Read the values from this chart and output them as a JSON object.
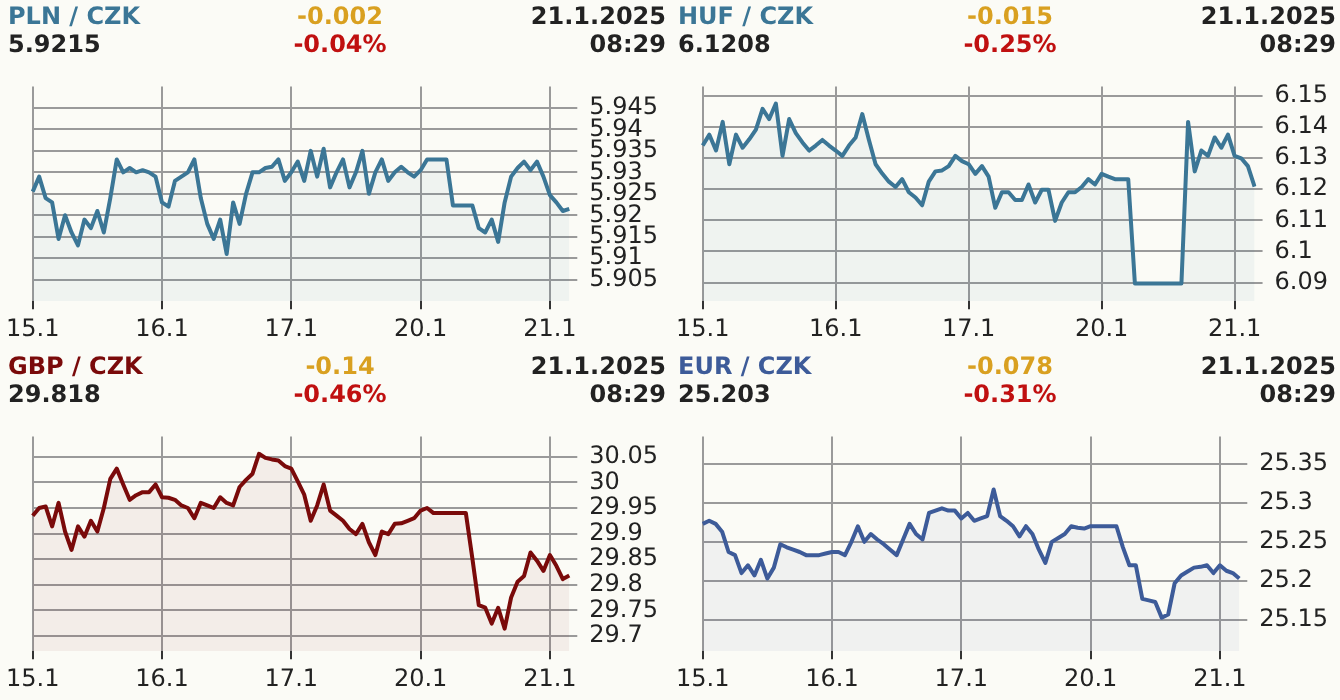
{
  "chart_data": [
    {
      "type": "area",
      "title": "PLN / CZK",
      "subtitle": "5.9215",
      "annotations": [
        "-0.002",
        "-0.04%",
        "21.1.2025",
        "08:29"
      ],
      "grid": true,
      "legend": false,
      "ylim": [
        5.9,
        5.95
      ],
      "yticks": [
        5.905,
        5.91,
        5.915,
        5.92,
        5.925,
        5.93,
        5.935,
        5.94,
        5.945
      ],
      "categories": [
        "15.1",
        null,
        null,
        null,
        null,
        null,
        null,
        null,
        null,
        null,
        null,
        null,
        null,
        null,
        null,
        null,
        null,
        null,
        null,
        null,
        "16.1",
        null,
        null,
        null,
        null,
        null,
        null,
        null,
        null,
        null,
        null,
        null,
        null,
        null,
        null,
        null,
        null,
        null,
        null,
        null,
        "17.1",
        null,
        null,
        null,
        null,
        null,
        null,
        null,
        null,
        null,
        null,
        null,
        null,
        null,
        null,
        null,
        null,
        null,
        null,
        null,
        "20.1",
        null,
        null,
        null,
        null,
        null,
        null,
        null,
        null,
        null,
        null,
        null,
        null,
        null,
        null,
        null,
        null,
        null,
        null,
        null,
        "21.1",
        null,
        null,
        null
      ],
      "series": [
        {
          "color": "#3b7696",
          "values": [
            5.9255,
            5.929,
            5.924,
            5.923,
            5.9145,
            5.92,
            5.916,
            5.913,
            5.919,
            5.917,
            5.921,
            5.916,
            5.924,
            5.933,
            5.93,
            5.931,
            5.93,
            5.9305,
            5.93,
            5.929,
            5.923,
            5.922,
            5.928,
            5.929,
            5.93,
            5.933,
            5.924,
            5.918,
            5.9145,
            5.919,
            5.911,
            5.923,
            5.918,
            5.925,
            5.93,
            5.93,
            5.931,
            5.9313,
            5.933,
            5.928,
            5.93,
            5.9325,
            5.928,
            5.935,
            5.929,
            5.9355,
            5.9265,
            5.93,
            5.933,
            5.9265,
            5.93,
            5.935,
            5.925,
            5.93,
            5.933,
            5.928,
            5.93,
            5.9313,
            5.93,
            5.929,
            5.9305,
            5.933,
            5.933,
            5.933,
            5.933,
            5.9223,
            5.9223,
            5.9223,
            5.9223,
            5.917,
            5.916,
            5.919,
            5.9138,
            5.923,
            5.929,
            5.931,
            5.9325,
            5.9305,
            5.9325,
            5.929,
            5.9247,
            5.923,
            5.921,
            5.9215
          ]
        }
      ]
    },
    {
      "type": "area",
      "title": "HUF / CZK",
      "subtitle": "6.1208",
      "annotations": [
        "-0.015",
        "-0.25%",
        "21.1.2025",
        "08:29"
      ],
      "grid": true,
      "legend": false,
      "ylim": [
        6.084,
        6.153
      ],
      "yticks": [
        6.09,
        6.1,
        6.11,
        6.12,
        6.13,
        6.14,
        6.15
      ],
      "categories": [
        "15.1",
        null,
        null,
        null,
        null,
        null,
        null,
        null,
        null,
        null,
        null,
        null,
        null,
        null,
        null,
        null,
        null,
        null,
        null,
        null,
        "16.1",
        null,
        null,
        null,
        null,
        null,
        null,
        null,
        null,
        null,
        null,
        null,
        null,
        null,
        null,
        null,
        null,
        null,
        null,
        null,
        "17.1",
        null,
        null,
        null,
        null,
        null,
        null,
        null,
        null,
        null,
        null,
        null,
        null,
        null,
        null,
        null,
        null,
        null,
        null,
        null,
        "20.1",
        null,
        null,
        null,
        null,
        null,
        null,
        null,
        null,
        null,
        null,
        null,
        null,
        null,
        null,
        null,
        null,
        null,
        null,
        null,
        "21.1",
        null,
        null,
        null
      ],
      "series": [
        {
          "color": "#3b7696",
          "values": [
            6.134,
            6.1375,
            6.1324,
            6.1416,
            6.128,
            6.1375,
            6.1333,
            6.136,
            6.1391,
            6.1458,
            6.1425,
            6.1475,
            6.1307,
            6.1425,
            6.138,
            6.135,
            6.1324,
            6.134,
            6.1358,
            6.134,
            6.1324,
            6.1307,
            6.134,
            6.1366,
            6.1441,
            6.1358,
            6.128,
            6.125,
            6.1224,
            6.1207,
            6.1232,
            6.119,
            6.1173,
            6.1148,
            6.1224,
            6.1257,
            6.126,
            6.1274,
            6.1307,
            6.129,
            6.128,
            6.1249,
            6.1274,
            6.124,
            6.114,
            6.119,
            6.119,
            6.1165,
            6.1165,
            6.1215,
            6.1157,
            6.1198,
            6.1198,
            6.1098,
            6.1157,
            6.119,
            6.119,
            6.1207,
            6.1232,
            6.1215,
            6.1249,
            6.124,
            6.1232,
            6.1232,
            6.1232,
            6.0897,
            6.0897,
            6.0897,
            6.0897,
            6.0897,
            6.0897,
            6.0897,
            6.0897,
            6.1416,
            6.1257,
            6.1324,
            6.1307,
            6.1366,
            6.1333,
            6.1375,
            6.1307,
            6.1299,
            6.1274,
            6.1208
          ]
        }
      ]
    },
    {
      "type": "area",
      "title": "GBP / CZK",
      "subtitle": "29.818",
      "annotations": [
        "-0.14",
        "-0.46%",
        "21.1.2025",
        "08:29"
      ],
      "grid": true,
      "legend": false,
      "ylim": [
        29.67,
        30.09
      ],
      "yticks": [
        29.7,
        29.75,
        29.8,
        29.85,
        29.9,
        29.95,
        30,
        30.05
      ],
      "categories": [
        "15.1",
        null,
        null,
        null,
        null,
        null,
        null,
        null,
        null,
        null,
        null,
        null,
        null,
        null,
        null,
        null,
        null,
        null,
        null,
        null,
        "16.1",
        null,
        null,
        null,
        null,
        null,
        null,
        null,
        null,
        null,
        null,
        null,
        null,
        null,
        null,
        null,
        null,
        null,
        null,
        null,
        "17.1",
        null,
        null,
        null,
        null,
        null,
        null,
        null,
        null,
        null,
        null,
        null,
        null,
        null,
        null,
        null,
        null,
        null,
        null,
        null,
        "20.1",
        null,
        null,
        null,
        null,
        null,
        null,
        null,
        null,
        null,
        null,
        null,
        null,
        null,
        null,
        null,
        null,
        null,
        null,
        null,
        "21.1",
        null,
        null,
        null
      ],
      "series": [
        {
          "color": "#7a0a0a",
          "values": [
            29.935,
            29.95,
            29.953,
            29.914,
            29.96,
            29.904,
            29.868,
            29.914,
            29.894,
            29.925,
            29.904,
            29.95,
            30.007,
            30.027,
            29.996,
            29.966,
            29.975,
            29.981,
            29.981,
            29.996,
            29.971,
            29.97,
            29.966,
            29.955,
            29.95,
            29.93,
            29.96,
            29.955,
            29.95,
            29.971,
            29.96,
            29.955,
            29.991,
            30.005,
            30.017,
            30.056,
            30.048,
            30.045,
            30.043,
            30.032,
            30.027,
            30.002,
            29.976,
            29.925,
            29.955,
            29.996,
            29.945,
            29.935,
            29.925,
            29.909,
            29.899,
            29.919,
            29.883,
            29.858,
            29.904,
            29.899,
            29.919,
            29.92,
            29.925,
            29.93,
            29.945,
            29.95,
            29.94,
            29.94,
            29.94,
            29.94,
            29.94,
            29.94,
            29.852,
            29.76,
            29.755,
            29.724,
            29.755,
            29.714,
            29.775,
            29.806,
            29.817,
            29.863,
            29.847,
            29.827,
            29.858,
            29.837,
            29.811,
            29.818
          ]
        }
      ]
    },
    {
      "type": "area",
      "title": "EUR / CZK",
      "subtitle": "25.203",
      "annotations": [
        "-0.078",
        "-0.31%",
        "21.1.2025",
        "08:29"
      ],
      "grid": true,
      "legend": false,
      "ylim": [
        25.11,
        25.385
      ],
      "yticks": [
        25.15,
        25.2,
        25.25,
        25.3,
        25.35
      ],
      "categories": [
        "15.1",
        null,
        null,
        null,
        null,
        null,
        null,
        null,
        null,
        null,
        null,
        null,
        null,
        null,
        null,
        null,
        null,
        null,
        null,
        null,
        "16.1",
        null,
        null,
        null,
        null,
        null,
        null,
        null,
        null,
        null,
        null,
        null,
        null,
        null,
        null,
        null,
        null,
        null,
        null,
        null,
        "17.1",
        null,
        null,
        null,
        null,
        null,
        null,
        null,
        null,
        null,
        null,
        null,
        null,
        null,
        null,
        null,
        null,
        null,
        null,
        null,
        "20.1",
        null,
        null,
        null,
        null,
        null,
        null,
        null,
        null,
        null,
        null,
        null,
        null,
        null,
        null,
        null,
        null,
        null,
        null,
        null,
        "21.1",
        null,
        null,
        null
      ],
      "series": [
        {
          "color": "#3d5b99",
          "values": [
            25.273,
            25.277,
            25.273,
            25.263,
            25.237,
            25.233,
            25.21,
            25.22,
            25.207,
            25.227,
            25.203,
            25.217,
            25.247,
            25.243,
            25.24,
            25.237,
            25.233,
            25.233,
            25.233,
            25.235,
            25.237,
            25.237,
            25.233,
            25.25,
            25.27,
            25.25,
            25.26,
            25.253,
            25.247,
            25.24,
            25.233,
            25.253,
            25.273,
            25.26,
            25.253,
            25.287,
            25.29,
            25.293,
            25.29,
            25.29,
            25.28,
            25.287,
            25.277,
            25.28,
            25.283,
            25.317,
            25.283,
            25.277,
            25.27,
            25.257,
            25.27,
            25.26,
            25.24,
            25.223,
            25.25,
            25.255,
            25.26,
            25.27,
            25.268,
            25.267,
            25.27,
            25.27,
            25.27,
            25.27,
            25.27,
            25.243,
            25.22,
            25.22,
            25.177,
            25.175,
            25.173,
            25.153,
            25.157,
            25.197,
            25.207,
            25.212,
            25.217,
            25.218,
            25.22,
            25.21,
            25.22,
            25.213,
            25.21,
            25.203
          ]
        }
      ]
    }
  ]
}
